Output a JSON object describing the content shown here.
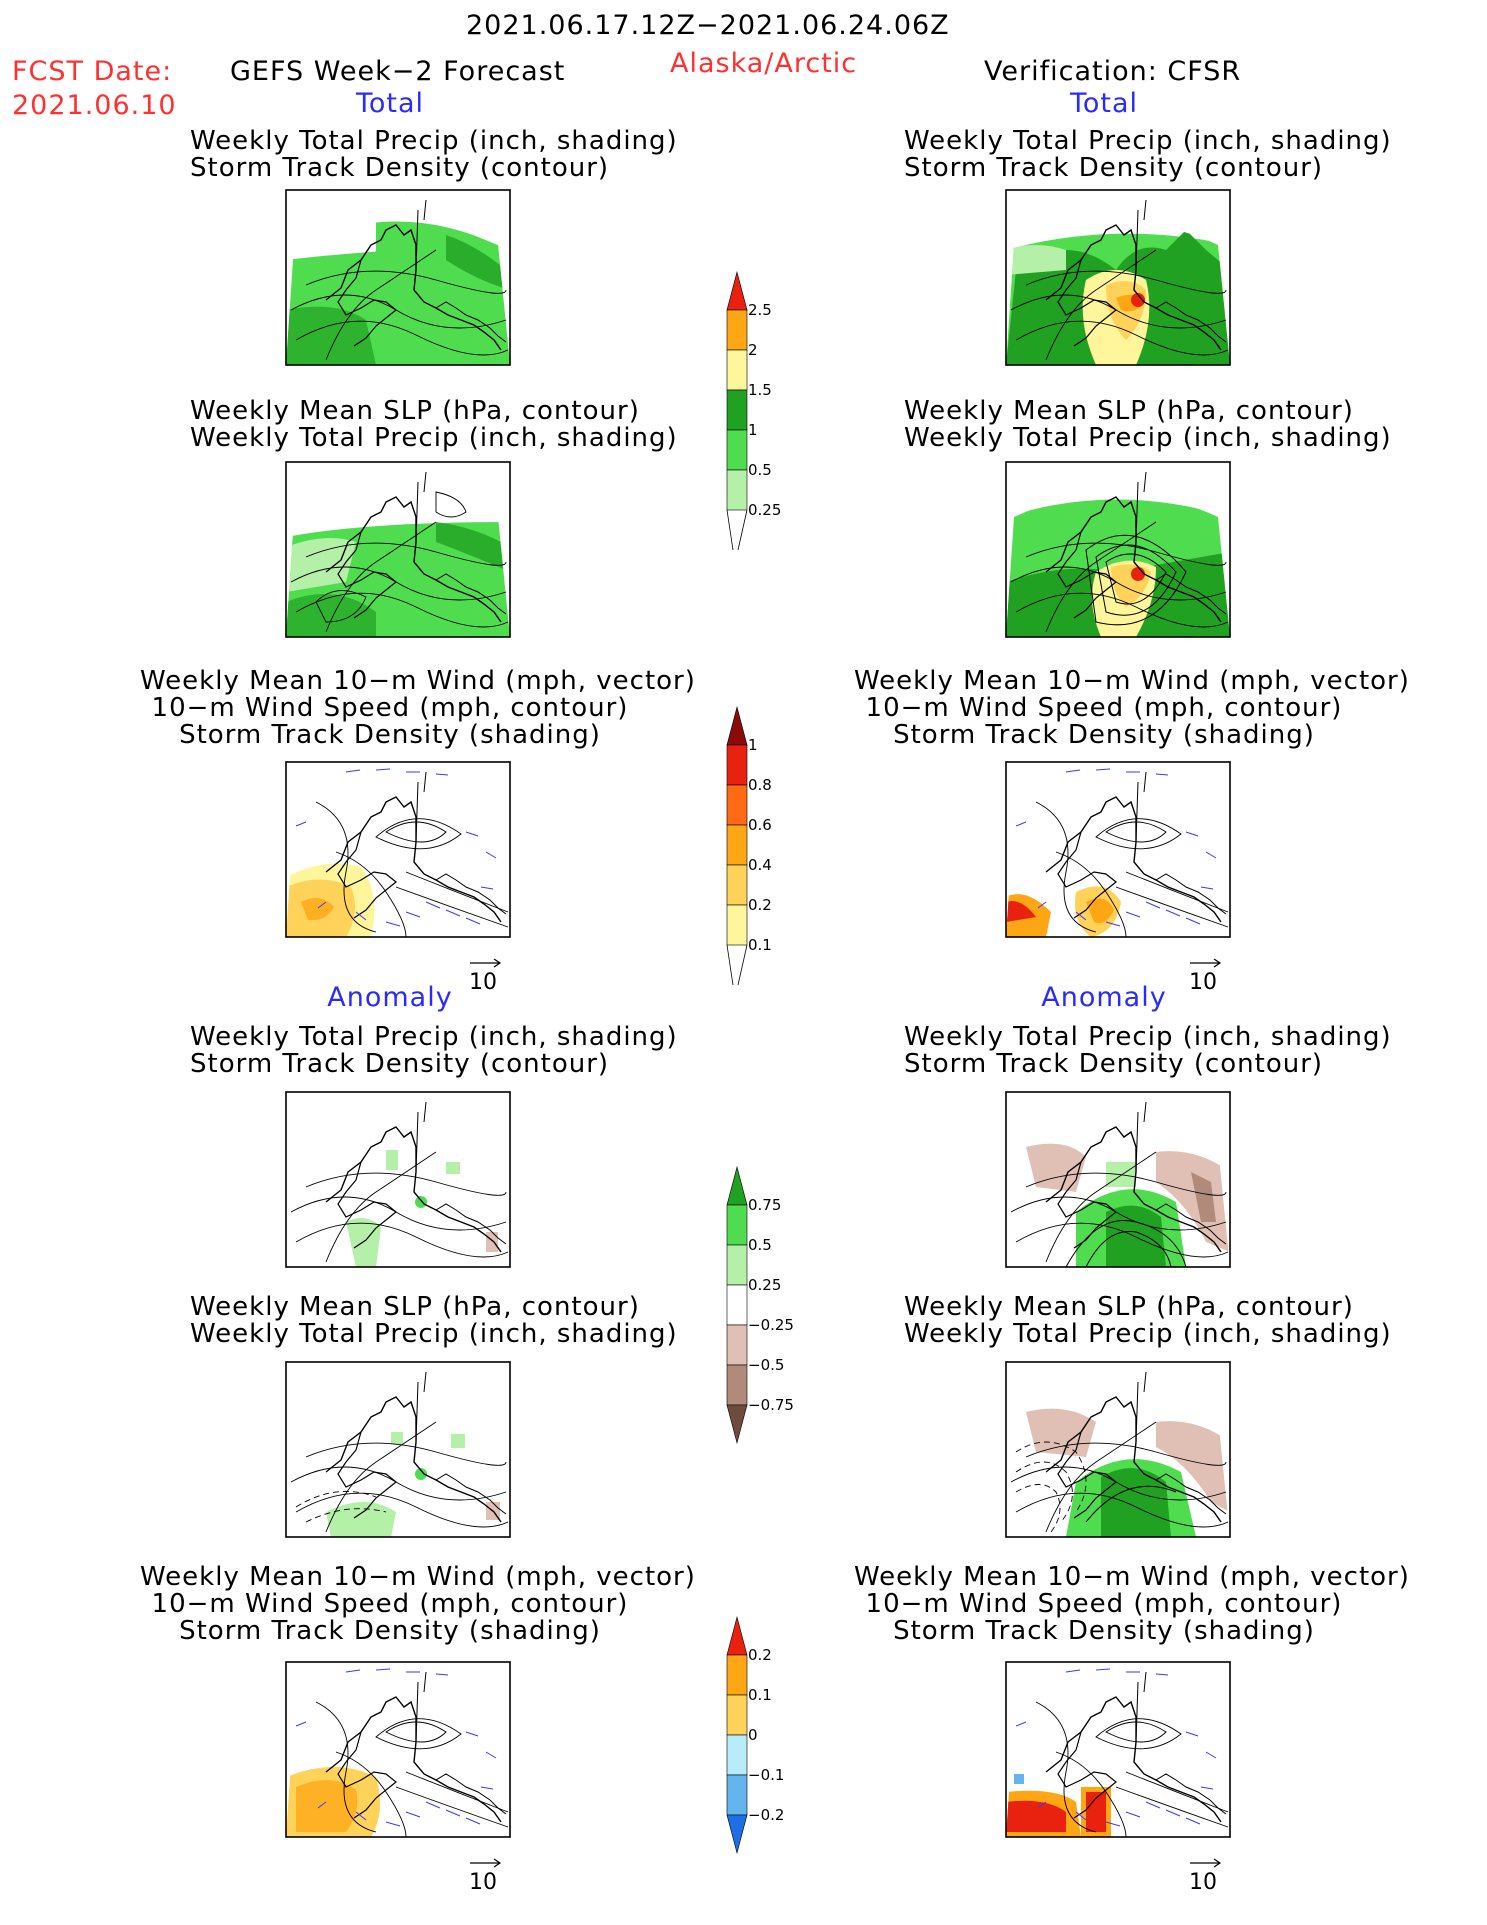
{
  "header": {
    "period": "2021.06.17.12Z−2021.06.24.06Z",
    "fcst_label": "FCST Date:",
    "fcst_date": "2021.06.10",
    "forecast_title": "GEFS Week−2 Forecast",
    "region": "Alaska/Arctic",
    "verification": "Verification: CFSR"
  },
  "sections": {
    "total": "Total",
    "anomaly": "Anomaly"
  },
  "panels": {
    "precip_track": [
      "Weekly Total Precip (inch, shading)",
      "Storm Track Density (contour)"
    ],
    "slp_precip": [
      "Weekly Mean SLP (hPa, contour)",
      "Weekly Total Precip (inch, shading)"
    ],
    "wind_track": [
      "Weekly Mean 10−m Wind (mph, vector)",
      "10−m Wind Speed (mph, contour)",
      "Storm Track Density (shading)"
    ]
  },
  "vector_ref": "10",
  "colorbars": {
    "precip_total": [
      "2.5",
      "2",
      "1.5",
      "1",
      "0.5",
      "0.25"
    ],
    "track_total": [
      "1",
      "0.8",
      "0.6",
      "0.4",
      "0.2",
      "0.1"
    ],
    "precip_anom": [
      "0.75",
      "0.5",
      "0.25",
      "−0.25",
      "−0.5",
      "−0.75"
    ],
    "track_anom": [
      "0.2",
      "0.1",
      "0",
      "−0.1",
      "−0.2"
    ]
  },
  "colors": {
    "green_light": "#b4f0a8",
    "green_mid": "#4fdc4f",
    "green_dark": "#21a121",
    "yellow": "#fff59a",
    "orange_light": "#ffd35a",
    "orange": "#ffa614",
    "red": "#e8220e",
    "dark_red": "#8c0a0a",
    "brown_light": "#e0c0b4",
    "brown_mid": "#b08a7a",
    "brown_dark": "#6e4b3c",
    "blue_light": "#b8ecf8",
    "blue_mid": "#64b4f0",
    "blue_dark": "#1e6ee6"
  }
}
